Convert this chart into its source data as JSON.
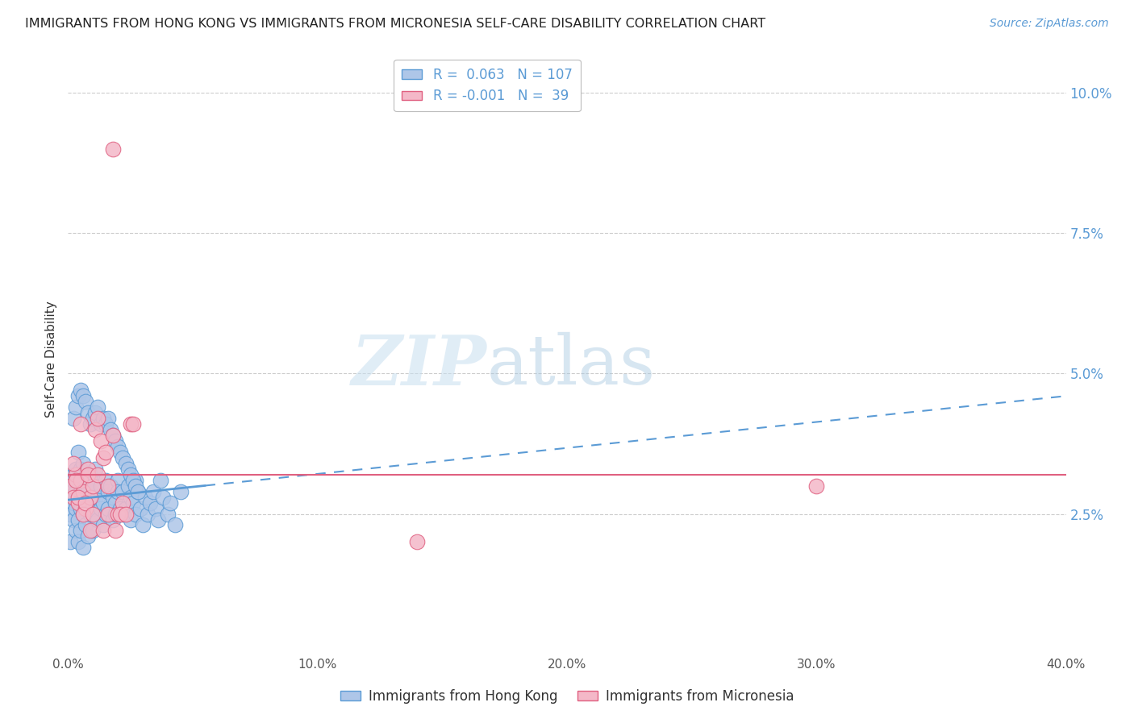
{
  "title": "IMMIGRANTS FROM HONG KONG VS IMMIGRANTS FROM MICRONESIA SELF-CARE DISABILITY CORRELATION CHART",
  "source": "Source: ZipAtlas.com",
  "ylabel": "Self-Care Disability",
  "xlim": [
    0.0,
    0.4
  ],
  "ylim": [
    0.0,
    0.105
  ],
  "x_ticks": [
    0.0,
    0.1,
    0.2,
    0.3,
    0.4
  ],
  "x_tick_labels": [
    "0.0%",
    "10.0%",
    "20.0%",
    "30.0%",
    "40.0%"
  ],
  "y_ticks": [
    0.025,
    0.05,
    0.075,
    0.1
  ],
  "y_tick_labels": [
    "2.5%",
    "5.0%",
    "7.5%",
    "10.0%"
  ],
  "legend_labels": [
    "Immigrants from Hong Kong",
    "Immigrants from Micronesia"
  ],
  "blue_color": "#aec6e8",
  "blue_edge": "#5b9bd5",
  "pink_color": "#f4b8c8",
  "pink_edge": "#e06080",
  "trendline_blue": "#5b9bd5",
  "trendline_pink": "#e06080",
  "R_blue": 0.063,
  "N_blue": 107,
  "R_pink": -0.001,
  "N_pink": 39,
  "watermark_zip": "ZIP",
  "watermark_atlas": "atlas",
  "trendline_blue_x0": 0.0,
  "trendline_blue_y0": 0.0275,
  "trendline_blue_x1": 0.4,
  "trendline_blue_y1": 0.046,
  "trendline_blue_solid_end": 0.055,
  "trendline_pink_x0": 0.0,
  "trendline_pink_y0": 0.032,
  "trendline_pink_x1": 0.4,
  "trendline_pink_y1": 0.032,
  "hk_x": [
    0.001,
    0.001,
    0.001,
    0.001,
    0.002,
    0.002,
    0.002,
    0.002,
    0.003,
    0.003,
    0.003,
    0.003,
    0.004,
    0.004,
    0.004,
    0.004,
    0.005,
    0.005,
    0.005,
    0.005,
    0.006,
    0.006,
    0.006,
    0.006,
    0.007,
    0.007,
    0.007,
    0.008,
    0.008,
    0.008,
    0.009,
    0.009,
    0.009,
    0.01,
    0.01,
    0.01,
    0.011,
    0.011,
    0.012,
    0.012,
    0.013,
    0.013,
    0.014,
    0.014,
    0.015,
    0.015,
    0.016,
    0.016,
    0.017,
    0.018,
    0.018,
    0.019,
    0.019,
    0.02,
    0.02,
    0.021,
    0.022,
    0.022,
    0.023,
    0.024,
    0.025,
    0.025,
    0.026,
    0.027,
    0.027,
    0.028,
    0.029,
    0.03,
    0.031,
    0.032,
    0.033,
    0.034,
    0.035,
    0.036,
    0.037,
    0.038,
    0.04,
    0.041,
    0.043,
    0.045,
    0.002,
    0.003,
    0.004,
    0.005,
    0.006,
    0.007,
    0.008,
    0.009,
    0.01,
    0.011,
    0.012,
    0.013,
    0.014,
    0.015,
    0.016,
    0.017,
    0.018,
    0.019,
    0.02,
    0.021,
    0.022,
    0.023,
    0.024,
    0.025,
    0.026,
    0.027,
    0.028
  ],
  "hk_y": [
    0.028,
    0.03,
    0.025,
    0.02,
    0.032,
    0.027,
    0.031,
    0.024,
    0.026,
    0.029,
    0.033,
    0.022,
    0.024,
    0.028,
    0.036,
    0.02,
    0.026,
    0.029,
    0.033,
    0.022,
    0.025,
    0.03,
    0.034,
    0.019,
    0.023,
    0.027,
    0.031,
    0.026,
    0.03,
    0.021,
    0.025,
    0.028,
    0.032,
    0.022,
    0.026,
    0.03,
    0.028,
    0.033,
    0.024,
    0.028,
    0.026,
    0.03,
    0.023,
    0.027,
    0.031,
    0.025,
    0.029,
    0.026,
    0.03,
    0.024,
    0.028,
    0.027,
    0.025,
    0.031,
    0.029,
    0.026,
    0.025,
    0.029,
    0.026,
    0.03,
    0.024,
    0.028,
    0.027,
    0.025,
    0.031,
    0.029,
    0.026,
    0.023,
    0.028,
    0.025,
    0.027,
    0.029,
    0.026,
    0.024,
    0.031,
    0.028,
    0.025,
    0.027,
    0.023,
    0.029,
    0.042,
    0.044,
    0.046,
    0.047,
    0.046,
    0.045,
    0.043,
    0.041,
    0.042,
    0.043,
    0.044,
    0.041,
    0.042,
    0.041,
    0.042,
    0.04,
    0.039,
    0.038,
    0.037,
    0.036,
    0.035,
    0.034,
    0.033,
    0.032,
    0.031,
    0.03,
    0.029
  ],
  "mic_x": [
    0.001,
    0.002,
    0.003,
    0.004,
    0.005,
    0.006,
    0.007,
    0.008,
    0.009,
    0.01,
    0.011,
    0.012,
    0.013,
    0.014,
    0.015,
    0.016,
    0.018,
    0.02,
    0.022,
    0.025,
    0.002,
    0.003,
    0.004,
    0.005,
    0.006,
    0.007,
    0.008,
    0.009,
    0.01,
    0.012,
    0.014,
    0.016,
    0.019,
    0.021,
    0.3,
    0.018,
    0.14,
    0.023,
    0.026
  ],
  "mic_y": [
    0.03,
    0.028,
    0.032,
    0.027,
    0.031,
    0.029,
    0.026,
    0.033,
    0.028,
    0.03,
    0.04,
    0.042,
    0.038,
    0.035,
    0.036,
    0.025,
    0.039,
    0.025,
    0.027,
    0.041,
    0.034,
    0.031,
    0.028,
    0.041,
    0.025,
    0.027,
    0.032,
    0.022,
    0.025,
    0.032,
    0.022,
    0.03,
    0.022,
    0.025,
    0.03,
    0.09,
    0.02,
    0.025,
    0.041
  ]
}
